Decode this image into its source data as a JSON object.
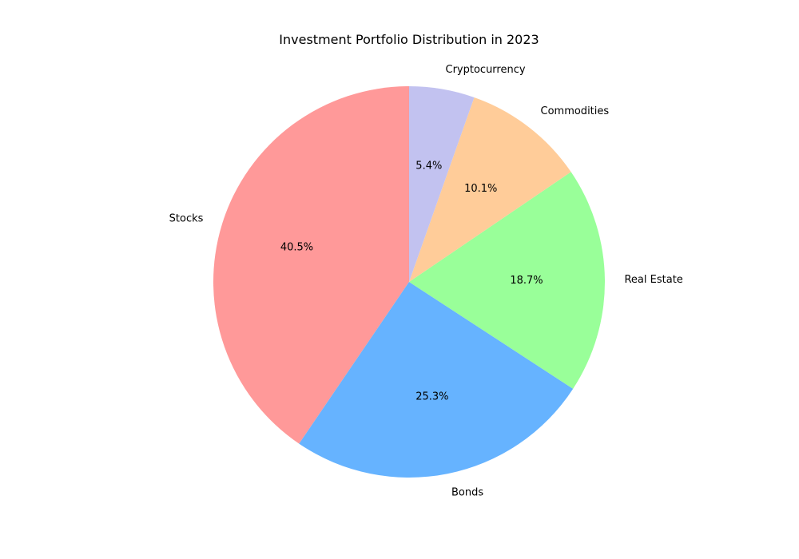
{
  "chart_data": {
    "type": "pie",
    "title": "Investment Portfolio Distribution in 2023",
    "categories": [
      "Stocks",
      "Bonds",
      "Real Estate",
      "Commodities",
      "Cryptocurrency"
    ],
    "values": [
      40.5,
      25.3,
      18.7,
      10.1,
      5.4
    ],
    "value_labels": [
      "40.5%",
      "25.3%",
      "18.7%",
      "10.1%",
      "5.4%"
    ],
    "colors": [
      "#ff9999",
      "#66b3ff",
      "#99ff99",
      "#ffcc99",
      "#c2c2f0"
    ],
    "start_angle_deg": 90,
    "direction": "counterclockwise",
    "legend": "none"
  }
}
